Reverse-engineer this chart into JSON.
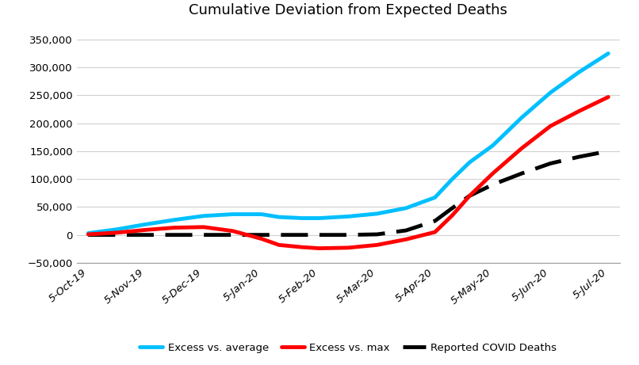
{
  "title": "Cumulative Deviation from Expected Deaths",
  "xlabels": [
    "5-Oct-19",
    "5-Nov-19",
    "5-Dec-19",
    "5-Jan-20",
    "5-Feb-20",
    "5-Mar-20",
    "5-Apr-20",
    "5-May-20",
    "5-Jun-20",
    "5-Jul-20"
  ],
  "ylim": [
    -50000,
    375000
  ],
  "yticks": [
    -50000,
    0,
    50000,
    100000,
    150000,
    200000,
    250000,
    300000,
    350000
  ],
  "color_avg": "#00bfff",
  "color_max": "#ff0000",
  "color_covid": "#000000",
  "legend_labels": [
    "Excess vs. average",
    "Excess vs. max",
    "Reported COVID Deaths"
  ],
  "bg_color": "#ffffff",
  "x_pts": [
    0,
    0.5,
    1,
    1.5,
    2,
    2.5,
    3,
    3.3,
    3.7,
    4,
    4.5,
    5,
    5.5,
    6,
    6.3,
    6.6,
    7,
    7.5,
    8,
    8.5,
    9
  ],
  "y_avg": [
    3000,
    10000,
    19000,
    27000,
    34000,
    37000,
    37000,
    32000,
    30000,
    30000,
    33000,
    38000,
    48000,
    67000,
    100000,
    130000,
    160000,
    210000,
    255000,
    292000,
    325000
  ],
  "y_max": [
    1000,
    4000,
    9000,
    13000,
    14000,
    7000,
    -7000,
    -18000,
    -22000,
    -24000,
    -23000,
    -18000,
    -8000,
    5000,
    35000,
    70000,
    110000,
    155000,
    195000,
    222000,
    247000
  ],
  "y_covid": [
    0,
    0,
    0,
    0,
    0,
    0,
    0,
    0,
    0,
    0,
    0,
    1000,
    8000,
    25000,
    48000,
    70000,
    90000,
    110000,
    128000,
    140000,
    150000
  ]
}
